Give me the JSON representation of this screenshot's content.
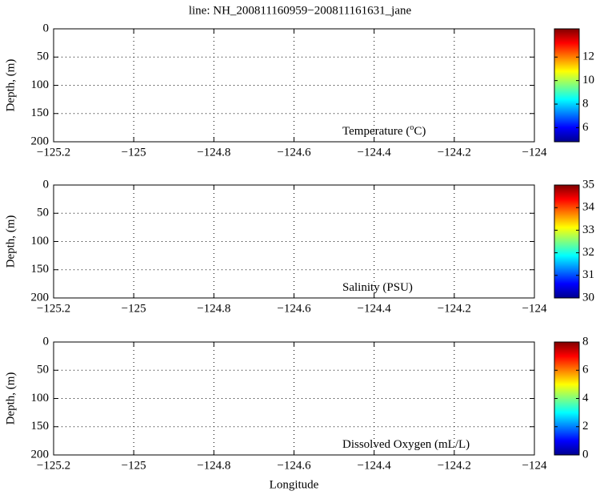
{
  "title": "line: NH_200811160959−200811161631_jane",
  "chart_data": [
    {
      "type": "contour",
      "annotation": [
        "Temperature (",
        "o",
        "C)"
      ],
      "ylabel": "Depth, (m)",
      "xlim": [
        -125.2,
        -124
      ],
      "xticks": [
        {
          "value": -125.2,
          "label": "−125.2"
        },
        {
          "value": -125,
          "label": "−125"
        },
        {
          "value": -124.8,
          "label": "−124.8"
        },
        {
          "value": -124.6,
          "label": "−124.6"
        },
        {
          "value": -124.4,
          "label": "−124.4"
        },
        {
          "value": -124.2,
          "label": "−124.2"
        },
        {
          "value": -124,
          "label": "−124"
        }
      ],
      "ylim": [
        0,
        200
      ],
      "y_inverted": true,
      "yticks": [
        0,
        50,
        100,
        150,
        200
      ],
      "grid": true,
      "colormap": "jet",
      "clim": [
        4.8,
        14.4
      ],
      "cticks": [
        6,
        8,
        10,
        12
      ]
    },
    {
      "type": "contour",
      "annotation": [
        "Salinity (PSU)"
      ],
      "ylabel": "Depth, (m)",
      "xlim": [
        -125.2,
        -124
      ],
      "xticks": [
        {
          "value": -125.2,
          "label": "−125.2"
        },
        {
          "value": -125,
          "label": "−125"
        },
        {
          "value": -124.8,
          "label": "−124.8"
        },
        {
          "value": -124.6,
          "label": "−124.6"
        },
        {
          "value": -124.4,
          "label": "−124.4"
        },
        {
          "value": -124.2,
          "label": "−124.2"
        },
        {
          "value": -124,
          "label": "−124"
        }
      ],
      "ylim": [
        0,
        200
      ],
      "y_inverted": true,
      "yticks": [
        0,
        50,
        100,
        150,
        200
      ],
      "grid": true,
      "colormap": "jet",
      "clim": [
        30,
        35
      ],
      "cticks": [
        30,
        31,
        32,
        33,
        34,
        35
      ]
    },
    {
      "type": "contour",
      "annotation": [
        "Dissolved Oxygen (mL/L)"
      ],
      "ylabel": "Depth, (m)",
      "xlabel": "Longitude",
      "xlim": [
        -125.2,
        -124
      ],
      "xticks": [
        {
          "value": -125.2,
          "label": "−125.2"
        },
        {
          "value": -125,
          "label": "−125"
        },
        {
          "value": -124.8,
          "label": "−124.8"
        },
        {
          "value": -124.6,
          "label": "−124.6"
        },
        {
          "value": -124.4,
          "label": "−124.4"
        },
        {
          "value": -124.2,
          "label": "−124.2"
        },
        {
          "value": -124,
          "label": "−124"
        }
      ],
      "ylim": [
        0,
        200
      ],
      "y_inverted": true,
      "yticks": [
        0,
        50,
        100,
        150,
        200
      ],
      "grid": true,
      "colormap": "jet",
      "clim": [
        0,
        8
      ],
      "cticks": [
        0,
        2,
        4,
        6,
        8
      ]
    }
  ]
}
